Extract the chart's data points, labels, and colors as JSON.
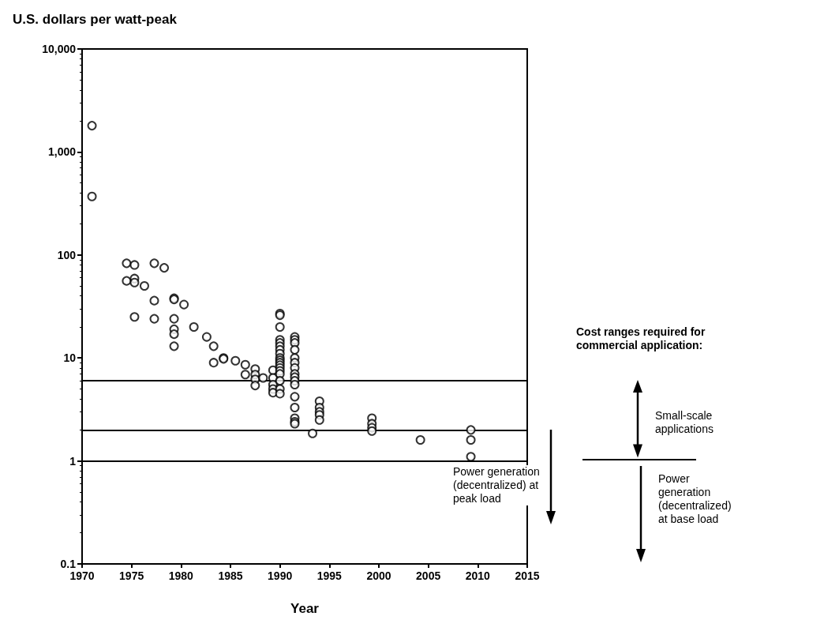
{
  "chart_data": {
    "type": "scatter",
    "ylabel": "U.S. dollars per watt-peak",
    "xlabel": "Year",
    "series": [
      {
        "color": "#000000",
        "x": [
          1971,
          1971,
          1974.5,
          1974.5,
          1975.3,
          1975.3,
          1975.3,
          1975.3,
          1976.3,
          1977.3,
          1977.3,
          1977.3,
          1978.3,
          1979.3,
          1979.3,
          1979.3,
          1979.3,
          1979.3,
          1979.3,
          1980.3,
          1981.3,
          1982.6,
          1983.3,
          1983.3,
          1984.3,
          1984.3,
          1985.5,
          1986.5,
          1986.5,
          1987.5,
          1987.5,
          1987.5,
          1987.5,
          1988.3,
          1989.3,
          1989.3,
          1989.3,
          1989.3,
          1989.3,
          1990,
          1990,
          1990,
          1990,
          1990,
          1990,
          1990,
          1990,
          1990,
          1990,
          1990,
          1990,
          1990,
          1990,
          1990,
          1990,
          1990,
          1990,
          1991.5,
          1991.5,
          1991.5,
          1991.5,
          1991.5,
          1991.5,
          1991.5,
          1991.5,
          1991.5,
          1991.5,
          1991.5,
          1991.5,
          1991.5,
          1991.5,
          1991.5,
          1991.5,
          1993.3,
          1994,
          1994,
          1994,
          1994,
          1994,
          1999.3,
          1999.3,
          1999.3,
          1999.3,
          2004.2,
          2009.3,
          2009.3,
          2009.3
        ],
        "values": [
          1800,
          370,
          83,
          56,
          80,
          59,
          54,
          25,
          50,
          83,
          36,
          24,
          75,
          38,
          37,
          24,
          19,
          17,
          13,
          33,
          20,
          16,
          13,
          9,
          10,
          9.8,
          9.4,
          8.6,
          6.9,
          7.8,
          6.9,
          6.2,
          5.4,
          6.4,
          7.6,
          6.4,
          5.5,
          5,
          4.6,
          27,
          26,
          20,
          15,
          14,
          13,
          12,
          11,
          10,
          9.5,
          9,
          8.5,
          8,
          7.5,
          7,
          6,
          5,
          4.5,
          16,
          15,
          14,
          12,
          10,
          9,
          8,
          7,
          6.5,
          6,
          5.5,
          4.2,
          3.3,
          2.6,
          2.4,
          2.3,
          1.85,
          3.8,
          3.3,
          3,
          2.8,
          2.5,
          2.6,
          2.3,
          2.1,
          1.95,
          1.6,
          2,
          1.6,
          1.1
        ]
      }
    ],
    "xlim": [
      1970,
      2015
    ],
    "xticks": [
      1970,
      1975,
      1980,
      1985,
      1990,
      1995,
      2000,
      2005,
      2010,
      2015
    ],
    "ylim": [
      0.1,
      10000
    ],
    "yticks": [
      0.1,
      1,
      10,
      100,
      {
        "value": 1000,
        "label": "1,000"
      },
      {
        "value": 10000,
        "label": "10,000"
      }
    ],
    "log": "y",
    "marker": "circle",
    "grid": false,
    "ref_lines": [
      {
        "axis": "y",
        "value": 6,
        "color": "#000000"
      },
      {
        "axis": "y",
        "value": 2,
        "color": "#000000"
      },
      {
        "axis": "y",
        "value": 1,
        "color": "#000000"
      }
    ],
    "annotations": [
      "Cost ranges required for commercial application:",
      "Small-scale applications",
      "Power generation (decentralized) at peak load",
      "Power generation (decentralized) at base load"
    ]
  }
}
